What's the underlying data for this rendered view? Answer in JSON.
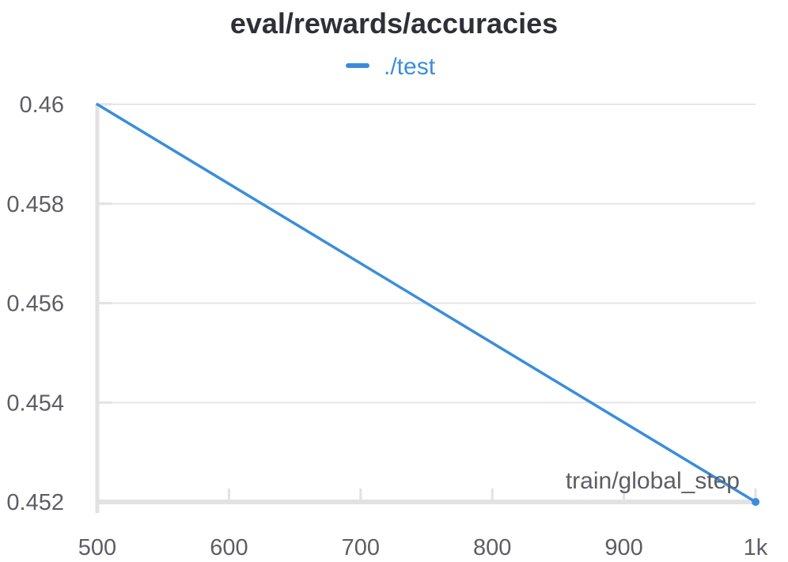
{
  "chart_data": {
    "type": "line",
    "title": "eval/rewards/accuracies",
    "xlabel": "train/global_step",
    "ylabel": "",
    "xlim": [
      500,
      1000
    ],
    "ylim": [
      0.452,
      0.46
    ],
    "x_ticks": [
      {
        "value": 500,
        "label": "500"
      },
      {
        "value": 600,
        "label": "600"
      },
      {
        "value": 700,
        "label": "700"
      },
      {
        "value": 800,
        "label": "800"
      },
      {
        "value": 900,
        "label": "900"
      },
      {
        "value": 1000,
        "label": "1k"
      }
    ],
    "y_ticks": [
      {
        "value": 0.46,
        "label": "0.46"
      },
      {
        "value": 0.458,
        "label": "0.458"
      },
      {
        "value": 0.456,
        "label": "0.456"
      },
      {
        "value": 0.454,
        "label": "0.454"
      },
      {
        "value": 0.452,
        "label": "0.452"
      }
    ],
    "grid": true,
    "legend_position": "top-center",
    "series": [
      {
        "name": "./test",
        "color": "#3b8ddb",
        "x": [
          500,
          1000
        ],
        "y": [
          0.46,
          0.452
        ]
      }
    ]
  }
}
